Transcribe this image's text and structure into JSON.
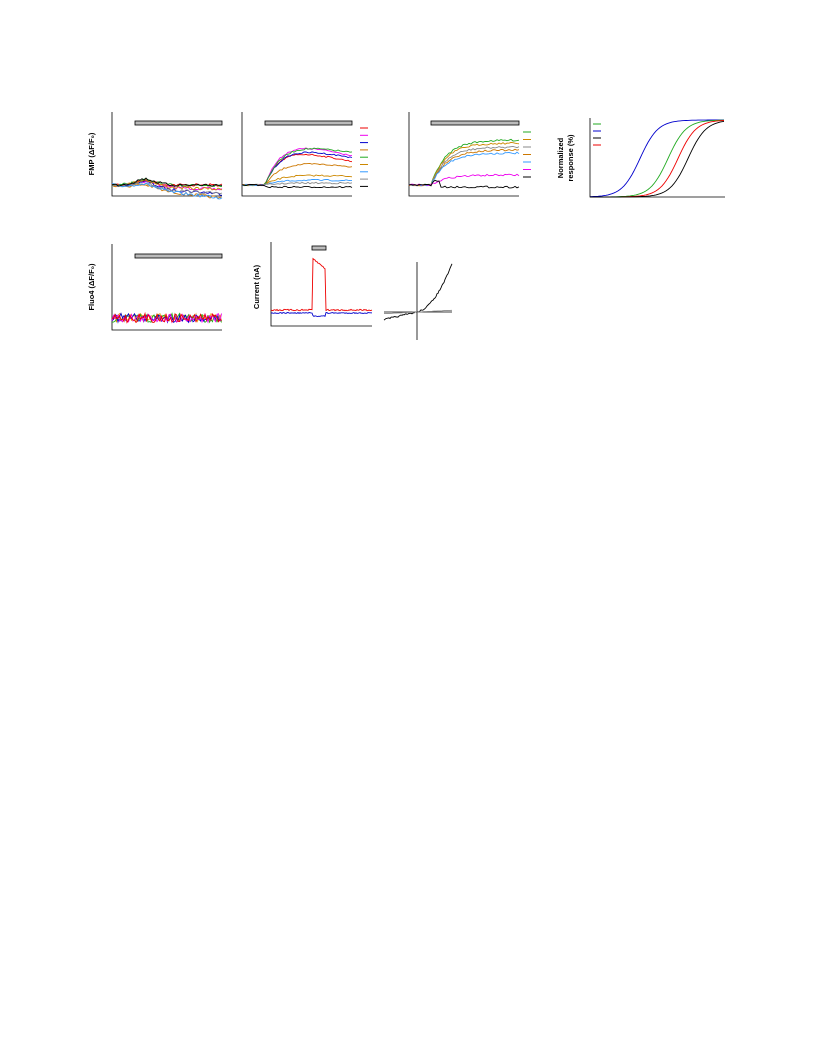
{
  "panels": {
    "fmp_label": "FMP (ΔF/F₀)",
    "normalized_label_line1": "Normalized",
    "normalized_label_line2": "response (%)",
    "fluo4_label": "Fluo4 (ΔF/F₀)",
    "current_label": "Current (nA)"
  }
}
